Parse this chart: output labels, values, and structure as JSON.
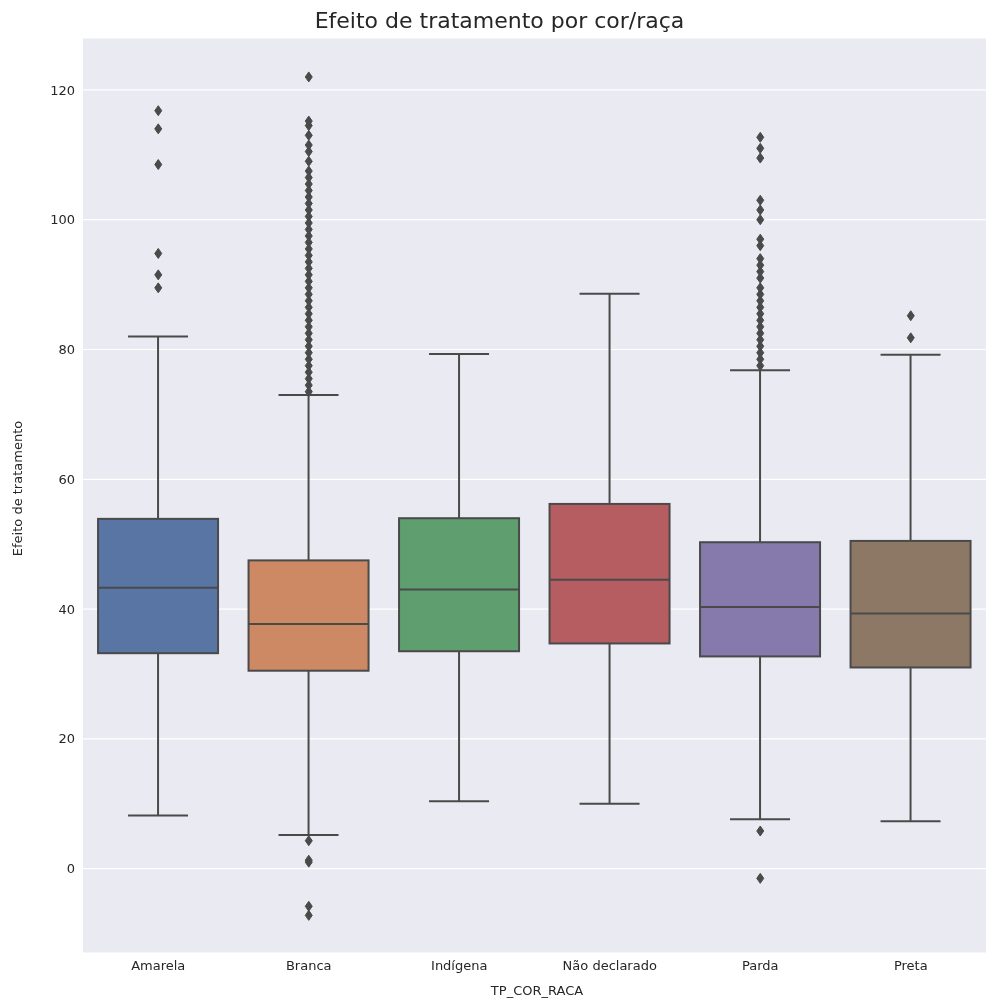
{
  "chart_data": {
    "type": "box",
    "title": "Efeito de tratamento por cor/raça",
    "xlabel": "TP_COR_RACA",
    "ylabel": "Efeito de tratamento",
    "categories": [
      "Amarela",
      "Branca",
      "Indígena",
      "Não declarado",
      "Parda",
      "Preta"
    ],
    "colors": [
      "#5875a4",
      "#cc8963",
      "#5f9e6e",
      "#b55d60",
      "#857aab",
      "#8d7866"
    ],
    "boxes": [
      {
        "low": 8.2,
        "q1": 33.2,
        "median": 43.3,
        "q3": 53.9,
        "high": 82,
        "outliers": [
          89.5,
          91.5,
          94.8,
          108.5,
          114,
          116.8
        ]
      },
      {
        "low": 5.2,
        "q1": 30.5,
        "median": 37.7,
        "q3": 47.5,
        "high": 73,
        "outliers": [
          -7.2,
          -5.8,
          1,
          1.3,
          4.3,
          73.5,
          74.5,
          75.5,
          76.5,
          77.5,
          78.5,
          79.5,
          80.5,
          81.5,
          82.5,
          83.5,
          84.5,
          85.5,
          86.5,
          87.5,
          88.5,
          89.5,
          90.5,
          91.5,
          92.5,
          93.5,
          94.5,
          95.5,
          96.5,
          97.5,
          98.5,
          99.5,
          100.5,
          101.5,
          102.5,
          103.5,
          104.5,
          105.5,
          106.5,
          107.5,
          109,
          110.5,
          111.5,
          113,
          114.5,
          115.2,
          122
        ]
      },
      {
        "low": 10.4,
        "q1": 33.5,
        "median": 43,
        "q3": 54,
        "high": 79.3
      },
      {
        "low": 10,
        "q1": 34.7,
        "median": 44.5,
        "q3": 56.2,
        "high": 88.6
      },
      {
        "low": 7.6,
        "q1": 32.7,
        "median": 40.3,
        "q3": 50.3,
        "high": 76.8,
        "outliers": [
          -1.5,
          5.8,
          77.5,
          78.5,
          79.5,
          80.5,
          81.5,
          82.5,
          83.5,
          84.5,
          85.5,
          86.5,
          87.5,
          88.5,
          89.5,
          91,
          92,
          93,
          94,
          96,
          97,
          100,
          101.5,
          103,
          109.5,
          111,
          112.7
        ]
      },
      {
        "low": 7.3,
        "q1": 31,
        "median": 39.3,
        "q3": 50.5,
        "high": 79.2,
        "outliers": [
          81.8,
          85.2
        ]
      }
    ],
    "ylim": [
      -13,
      128
    ],
    "yticks": [
      0,
      20,
      40,
      60,
      80,
      100,
      120
    ],
    "grid": "y",
    "marker": "diamond"
  }
}
